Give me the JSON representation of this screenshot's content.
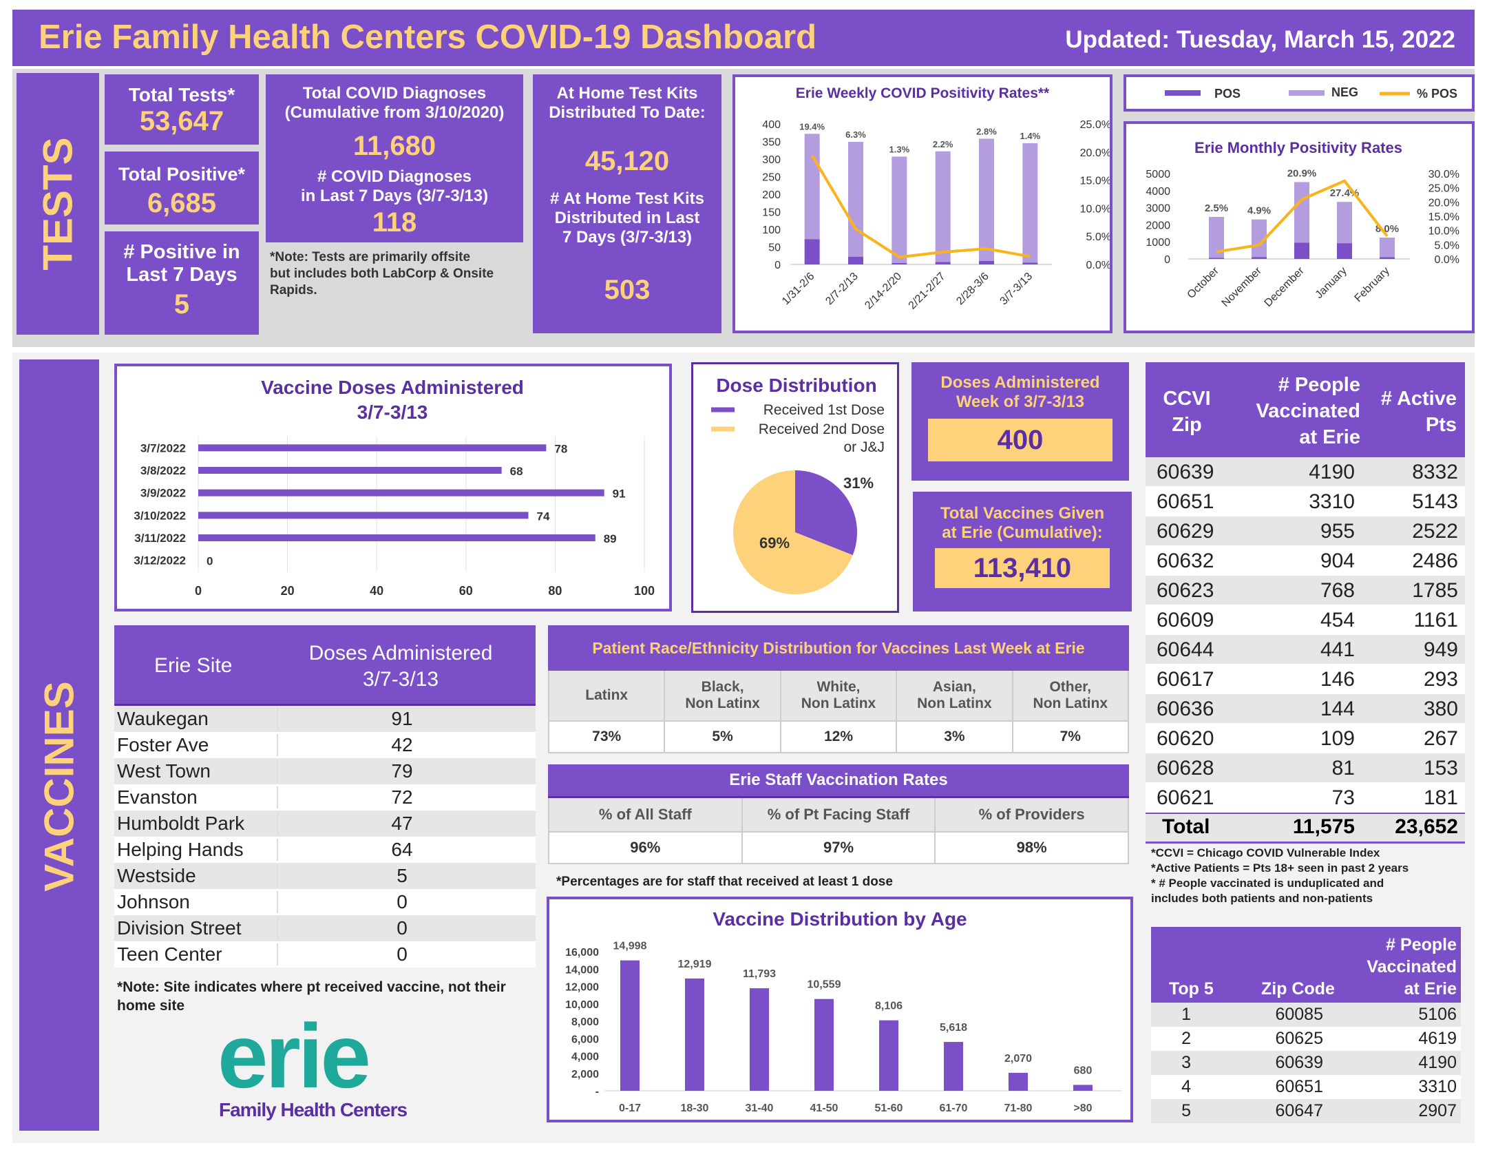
{
  "header": {
    "title": "Erie Family Health Centers COVID-19 Dashboard",
    "updated": "Updated: Tuesday, March 15, 2022"
  },
  "tests": {
    "section_label": "TESTS",
    "total_tests_label": "Total Tests*",
    "total_tests_value": "53,647",
    "total_positive_label": "Total Positive*",
    "total_positive_value": "6,685",
    "positive_7_label_1": "# Positive in",
    "positive_7_label_2": "Last 7 Days",
    "positive_7_value": "5",
    "diagnoses_label_1": "Total COVID Diagnoses",
    "diagnoses_label_2": "(Cumulative from 3/10/2020)",
    "diagnoses_value": "11,680",
    "diag7_label_1": "# COVID Diagnoses",
    "diag7_label_2": "in Last 7 Days (3/7-3/13)",
    "diag7_value": "118",
    "note_1": "*Note: Tests are primarily offsite",
    "note_2": "but includes both LabCorp & Onsite",
    "note_3": "Rapids.",
    "home_label_1": "At Home Test Kits",
    "home_label_2": "Distributed To Date:",
    "home_value": "45,120",
    "home7_label_1": "# At Home Test Kits",
    "home7_label_2": "Distributed in Last",
    "home7_label_3": "7 Days (3/7-3/13)",
    "home7_value": "503"
  },
  "vaccines": {
    "section_label": "VACCINES",
    "doses_week_label_1": "Doses Administered",
    "doses_week_label_2": "Week of 3/7-3/13",
    "doses_week_value": "400",
    "total_given_label_1": "Total Vaccines Given",
    "total_given_label_2": "at Erie (Cumulative):",
    "total_given_value": "113,410"
  },
  "sites": {
    "header_site": "Erie Site",
    "header_doses_1": "Doses Administered",
    "header_doses_2": "3/7-3/13",
    "rows": [
      {
        "site": "Waukegan",
        "doses": "91"
      },
      {
        "site": "Foster Ave",
        "doses": "42"
      },
      {
        "site": "West Town",
        "doses": "79"
      },
      {
        "site": "Evanston",
        "doses": "72"
      },
      {
        "site": "Humboldt Park",
        "doses": "47"
      },
      {
        "site": "Helping Hands",
        "doses": "64"
      },
      {
        "site": "Westside",
        "doses": "5"
      },
      {
        "site": "Johnson",
        "doses": "0"
      },
      {
        "site": "Division Street",
        "doses": "0"
      },
      {
        "site": "Teen Center",
        "doses": "0"
      }
    ],
    "note_1": "*Note: Site indicates where pt received vaccine, not their",
    "note_2": "home site"
  },
  "race": {
    "title": "Patient Race/Ethnicity Distribution for Vaccines Last Week at Erie",
    "headers": [
      {
        "l1": "Latinx",
        "l2": ""
      },
      {
        "l1": "Black,",
        "l2": "Non Latinx"
      },
      {
        "l1": "White,",
        "l2": "Non Latinx"
      },
      {
        "l1": "Asian,",
        "l2": "Non Latinx"
      },
      {
        "l1": "Other,",
        "l2": "Non Latinx"
      }
    ],
    "values": [
      "73%",
      "5%",
      "12%",
      "3%",
      "7%"
    ]
  },
  "staff": {
    "title": "Erie Staff Vaccination Rates",
    "headers": [
      "% of All Staff",
      "% of Pt Facing Staff",
      "% of Providers"
    ],
    "values": [
      "96%",
      "97%",
      "98%"
    ],
    "note": "*Percentages are for staff that received at least 1 dose"
  },
  "ccvi": {
    "header_zip_1": "CCVI",
    "header_zip_2": "Zip",
    "header_people_1": "# People",
    "header_people_2": "Vaccinated",
    "header_people_3": "at Erie",
    "header_active_1": "# Active",
    "header_active_2": "Pts",
    "rows": [
      {
        "zip": "60639",
        "people": "4190",
        "active": "8332"
      },
      {
        "zip": "60651",
        "people": "3310",
        "active": "5143"
      },
      {
        "zip": "60629",
        "people": "955",
        "active": "2522"
      },
      {
        "zip": "60632",
        "people": "904",
        "active": "2486"
      },
      {
        "zip": "60623",
        "people": "768",
        "active": "1785"
      },
      {
        "zip": "60609",
        "people": "454",
        "active": "1161"
      },
      {
        "zip": "60644",
        "people": "441",
        "active": "949"
      },
      {
        "zip": "60617",
        "people": "146",
        "active": "293"
      },
      {
        "zip": "60636",
        "people": "144",
        "active": "380"
      },
      {
        "zip": "60620",
        "people": "109",
        "active": "267"
      },
      {
        "zip": "60628",
        "people": "81",
        "active": "153"
      },
      {
        "zip": "60621",
        "people": "73",
        "active": "181"
      }
    ],
    "total_label": "Total",
    "total_people": "11,575",
    "total_active": "23,652",
    "notes": [
      "*CCVI = Chicago COVID Vulnerable Index",
      "*Active Patients = Pts 18+ seen in past 2 years",
      "* # People vaccinated is unduplicated and",
      "includes both patients and non-patients"
    ]
  },
  "top5": {
    "header_rank": "Top 5",
    "header_zip": "Zip Code",
    "header_people_1": "# People",
    "header_people_2": "Vaccinated",
    "header_people_3": "at Erie",
    "rows": [
      {
        "rank": "1",
        "zip": "60085",
        "people": "5106"
      },
      {
        "rank": "2",
        "zip": "60625",
        "people": "4619"
      },
      {
        "rank": "3",
        "zip": "60639",
        "people": "4190"
      },
      {
        "rank": "4",
        "zip": "60651",
        "people": "3310"
      },
      {
        "rank": "5",
        "zip": "60647",
        "people": "2907"
      }
    ]
  },
  "logo": {
    "word": "erie",
    "sub": "Family Health Centers"
  },
  "legend": {
    "pos": "POS",
    "neg": "NEG",
    "pct": "% POS"
  },
  "colors": {
    "purple": "#7a4fc8",
    "light_purple": "#b39ddf",
    "gold": "#fdd27a",
    "orange_line": "#f9b31b",
    "teal": "#1fa99b"
  },
  "chart_data": [
    {
      "id": "weekly",
      "type": "bar",
      "title": "Erie Weekly COVID Positivity Rates**",
      "categories": [
        "1/31-2/6",
        "2/7-2/13",
        "2/14-2/20",
        "2/21-2/27",
        "2/28-3/6",
        "3/7-3/13"
      ],
      "series": [
        {
          "name": "POS",
          "values": [
            72,
            22,
            4,
            7,
            10,
            5
          ]
        },
        {
          "name": "NEG",
          "values": [
            300,
            327,
            303,
            315,
            348,
            340
          ]
        },
        {
          "name": "% POS",
          "values": [
            19.4,
            6.3,
            1.3,
            2.2,
            2.8,
            1.4
          ]
        }
      ],
      "labels": [
        "19.4%",
        "6.3%",
        "1.3%",
        "2.2%",
        "2.8%",
        "1.4%"
      ],
      "y_ticks": [
        "0",
        "50",
        "100",
        "150",
        "200",
        "250",
        "300",
        "350",
        "400"
      ],
      "y2_ticks": [
        "0.0%",
        "5.0%",
        "10.0%",
        "15.0%",
        "20.0%",
        "25.0%"
      ],
      "ylim": [
        0,
        400
      ],
      "y2lim": [
        0,
        25
      ]
    },
    {
      "id": "monthly",
      "type": "bar",
      "title": "Erie Monthly Positivity Rates",
      "categories": [
        "October",
        "November",
        "December",
        "January",
        "February"
      ],
      "series": [
        {
          "name": "POS",
          "values": [
            60,
            110,
            950,
            920,
            100
          ]
        },
        {
          "name": "NEG",
          "values": [
            2400,
            2200,
            3550,
            2420,
            1150
          ]
        },
        {
          "name": "% POS",
          "values": [
            2.5,
            4.9,
            20.9,
            27.4,
            8.0
          ]
        }
      ],
      "labels": [
        "2.5%",
        "4.9%",
        "20.9%",
        "27.4%",
        "8.0%"
      ],
      "y_ticks": [
        "0",
        "1000",
        "2000",
        "3000",
        "4000",
        "5000"
      ],
      "y2_ticks": [
        "0.0%",
        "5.0%",
        "10.0%",
        "15.0%",
        "20.0%",
        "25.0%",
        "30.0%"
      ],
      "ylim": [
        0,
        5000
      ],
      "y2lim": [
        0,
        30
      ]
    },
    {
      "id": "doses",
      "type": "bar",
      "orientation": "horizontal",
      "title_1": "Vaccine Doses Administered",
      "title_2": "3/7-3/13",
      "categories": [
        "3/7/2022",
        "3/8/2022",
        "3/9/2022",
        "3/10/2022",
        "3/11/2022",
        "3/12/2022"
      ],
      "values": [
        78,
        68,
        91,
        74,
        89,
        0
      ],
      "x_ticks": [
        "0",
        "20",
        "40",
        "60",
        "80",
        "100"
      ],
      "xlim": [
        0,
        100
      ]
    },
    {
      "id": "pie",
      "type": "pie",
      "title": "Dose Distribution",
      "legend": [
        "Received 1st  Dose",
        "Received 2nd Dose",
        "or J&J"
      ],
      "values": [
        31,
        69
      ],
      "labels": [
        "31%",
        "69%"
      ]
    },
    {
      "id": "age",
      "type": "bar",
      "title": "Vaccine Distribution by Age",
      "categories": [
        "0-17",
        "18-30",
        "31-40",
        "41-50",
        "51-60",
        "61-70",
        "71-80",
        ">80"
      ],
      "values": [
        14998,
        12919,
        11793,
        10559,
        8106,
        5618,
        2070,
        680
      ],
      "labels": [
        "14,998",
        "12,919",
        "11,793",
        "10,559",
        "8,106",
        "5,618",
        "2,070",
        "680"
      ],
      "y_ticks": [
        "-",
        "2,000",
        "4,000",
        "6,000",
        "8,000",
        "10,000",
        "12,000",
        "14,000",
        "16,000"
      ],
      "ylim": [
        0,
        16000
      ]
    }
  ]
}
